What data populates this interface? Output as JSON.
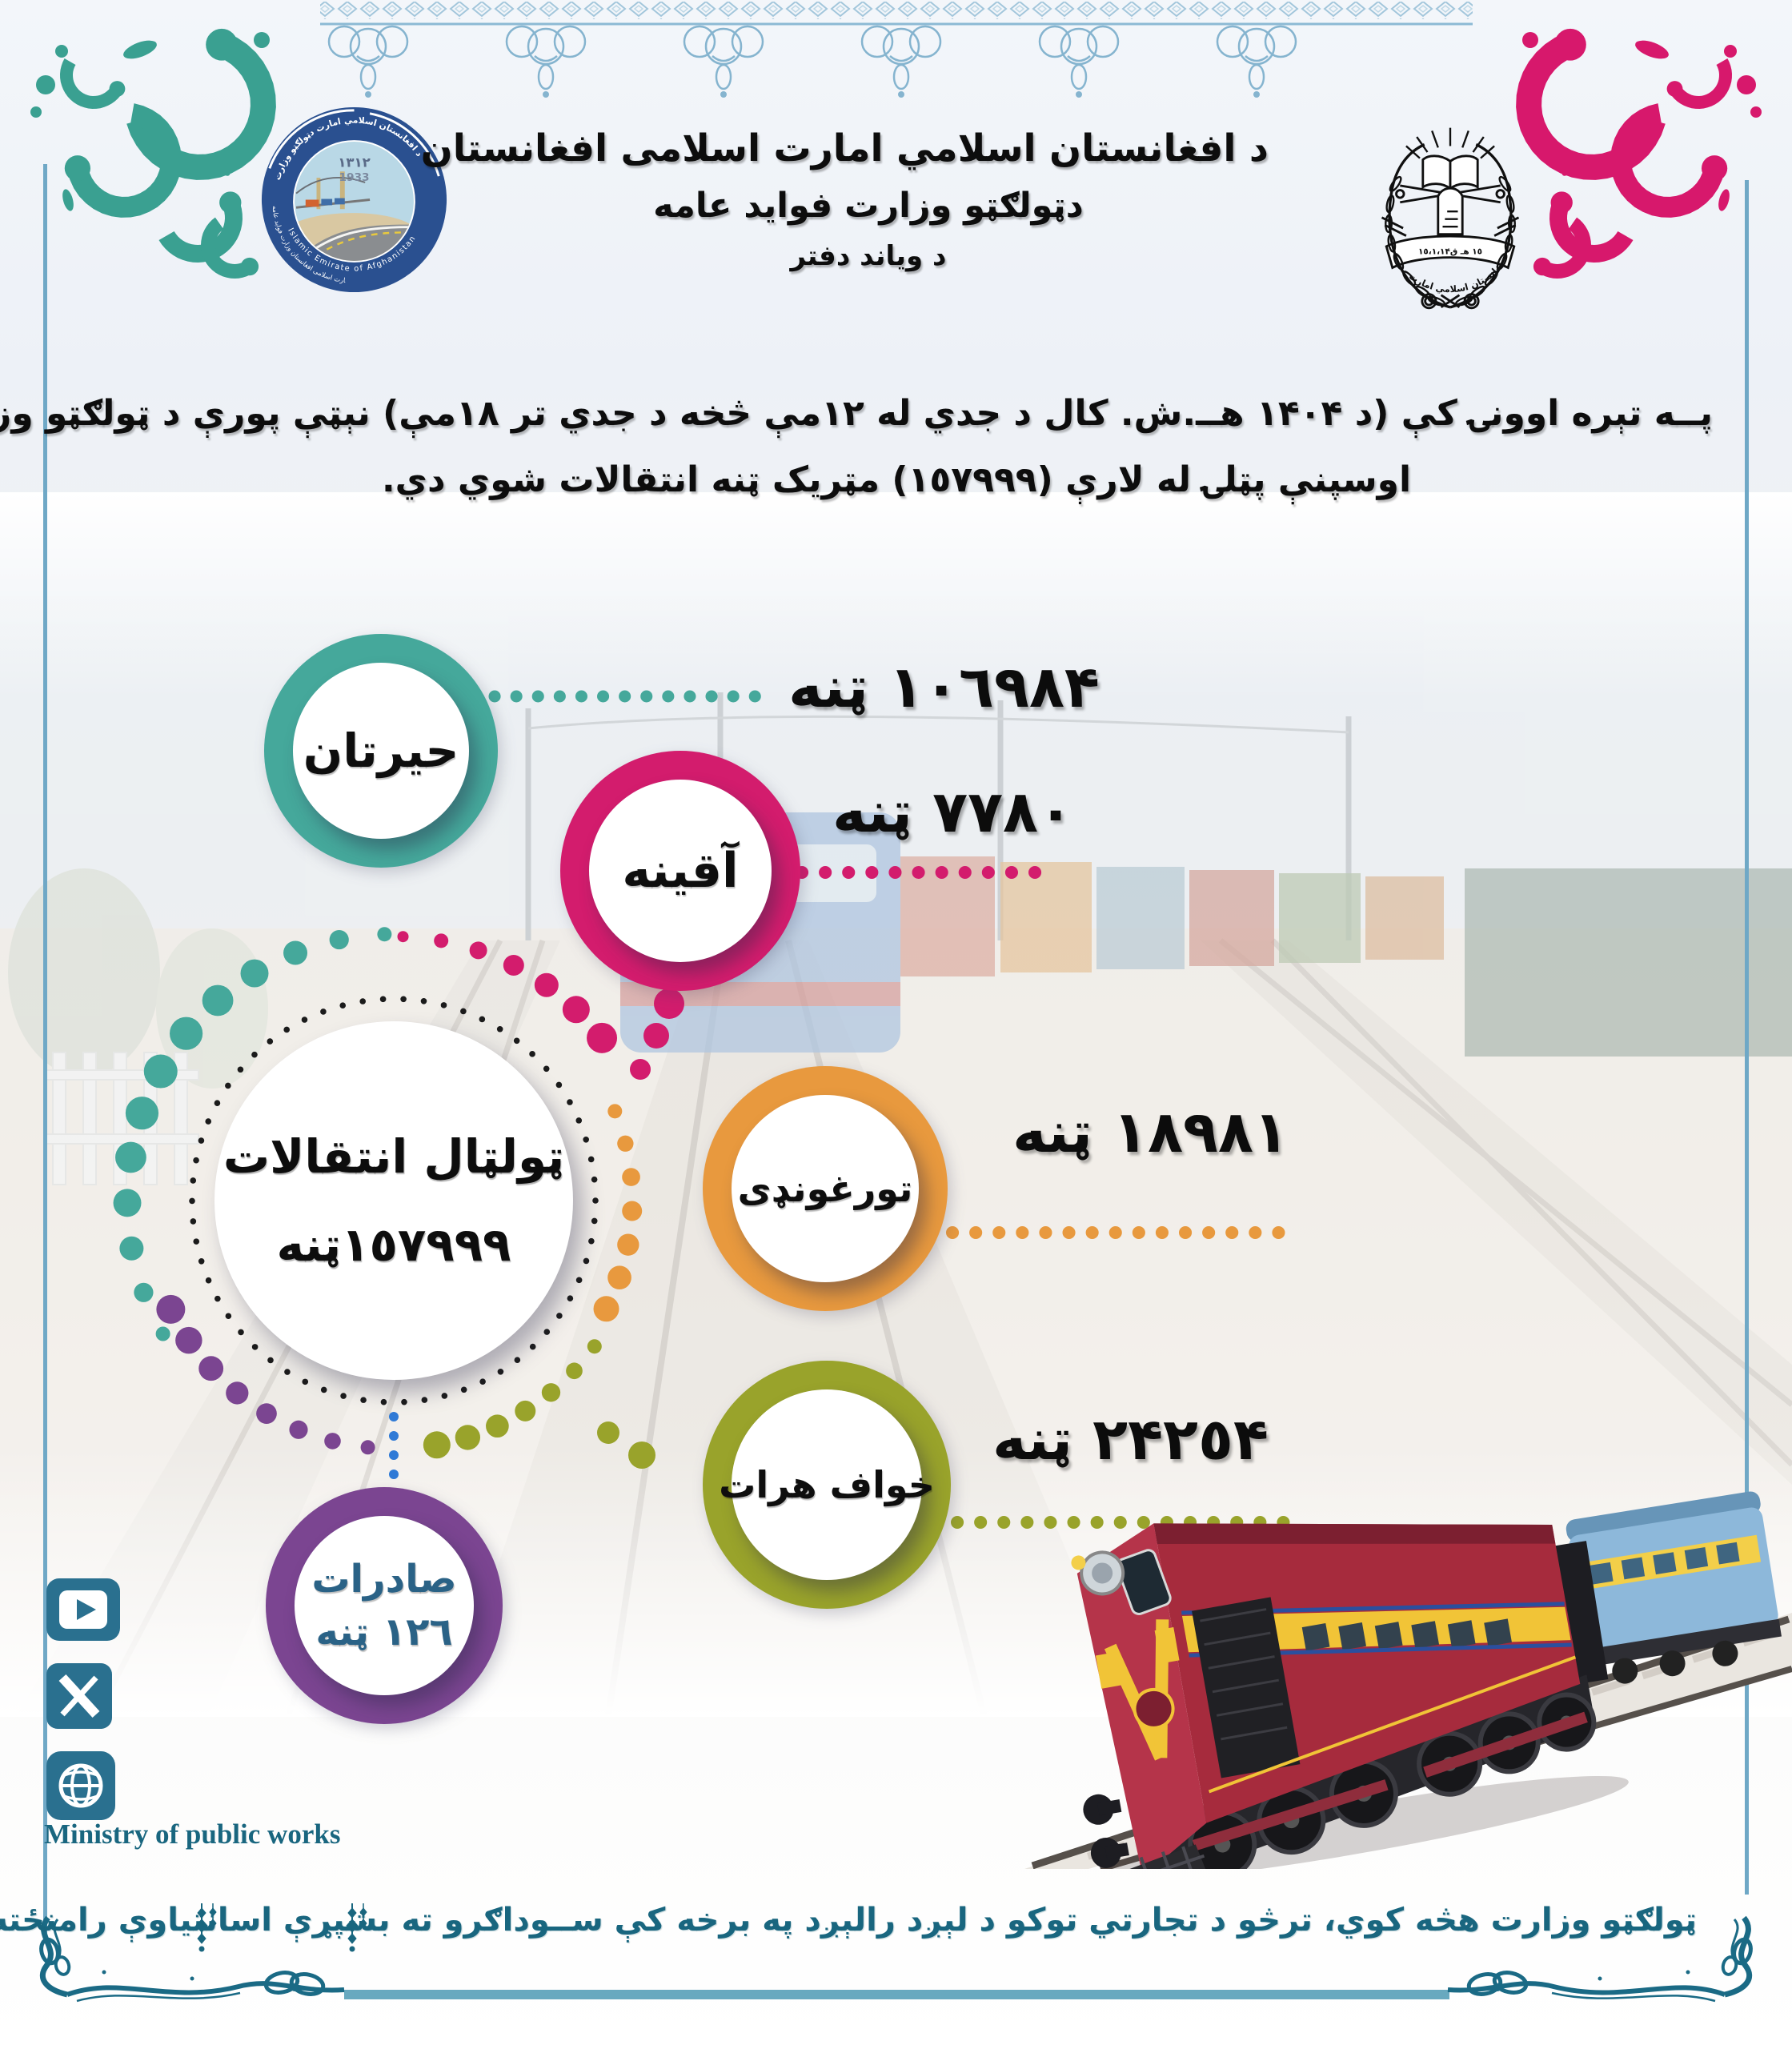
{
  "colors": {
    "teal": "#45a89b",
    "pink": "#d31c6d",
    "orange": "#e8993e",
    "olive": "#99a32b",
    "purple": "#7b4591",
    "blue_dots": "#2f7ad6",
    "frame_blue": "#6fa8c6",
    "lace_blue": "#86b7d2",
    "corner_teal": "#1a6a85",
    "brand_teal": "#19667f",
    "logo_navy": "#2a5090",
    "text_black": "#0d0d0d"
  },
  "header": {
    "line1": "د افغانستان اسلامي امارت اسلامی افغانستان",
    "line2": "دټولګټو وزارت فواید عامه",
    "line3": "د ویاند دفتر"
  },
  "logo": {
    "year_shamsi": "١٣١٢",
    "year_gregorian": "1933",
    "arc_top": "د افغانستان اسلامي امارت دټولګټو وزارت",
    "arc_left": "امارت اسلامی افغانستان وزارت فواید عامه",
    "caption_en": "Ministry of Public Works",
    "arc_bottom_en": "Islamic Emirate of Afghanistan"
  },
  "emblem": {
    "banner_text": "١٥،١،١۴١٥ هـ ق",
    "caption": "د افغانستان اسلامي امارت"
  },
  "intro": {
    "line1": "پــه تېره اوونۍ کې (د ١۴٠۴ هــ.ش. کال د جدي له ١٢مې څخه د جدي تر ١٨مې) نېټې پورې د ټولګټو وزارت د",
    "line2": "اوسپنې پټلۍ له لارې (١٥٧٩٩٩) مټریک ټنه انتقالات شوي دي."
  },
  "stations": {
    "hairatan": {
      "label": "حیرتان",
      "value": "١٠٦٩٨۴ ټنه"
    },
    "aqina": {
      "label": "آقینه",
      "value": "٧٧٨٠ ټنه"
    },
    "torghundi": {
      "label": "تورغونډی",
      "value": "١٨٩٨١ ټنه"
    },
    "khaf_herat": {
      "label": "خواف هرات",
      "value": "٢۴٢٥۴ ټنه"
    },
    "exports": {
      "label": "صادرات",
      "value": "١٢٦ ټنه"
    },
    "total": {
      "label": "ټولټال انتقالات",
      "value": "١٥٧٩٩٩ټنه"
    }
  },
  "icons": {
    "youtube": "play-button-in-rounded-square",
    "x_twitter": "x-glyph-in-rounded-square",
    "website": "globe-in-rounded-square"
  },
  "footer": {
    "brand_en": "Ministry of public works",
    "note": "ټولګټو وزارت هڅه کوي، ترڅو د تجارتي توکو د لېږد رالېږد په برخه کې ســوداګرو ته بشپړې اسانتیاوې رامنځته کړي ."
  },
  "chart_data": {
    "type": "table",
    "title": "ټولټال انتقالات",
    "unit": "مټریک ټنه",
    "categories": [
      "حیرتان",
      "آقینه",
      "تورغونډی",
      "خواف هرات",
      "صادرات"
    ],
    "values": [
      106984,
      7780,
      18981,
      24254,
      126
    ],
    "total": 157999,
    "period": "د ١۴٠۴ هـ.ش. کال د جدي له ١٢مې تر ١٨مې",
    "layout_hint": "circle infographic, center total circle with dotted ring, colored satellite circles with dotted leader lines"
  }
}
